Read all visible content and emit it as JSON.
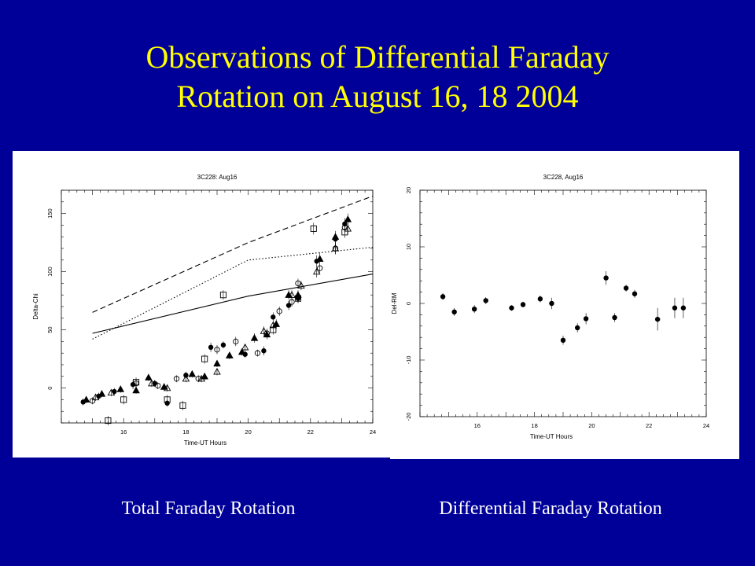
{
  "slide": {
    "title_line1": "Observations of Differential Faraday",
    "title_line2": "Rotation on August 16, 18 2004",
    "caption_left": "Total Faraday Rotation",
    "caption_right": "Differential Faraday Rotation",
    "colors": {
      "background": "#000099",
      "title": "#ffff00",
      "caption": "#ffffff",
      "panel": "#ffffff"
    }
  },
  "chart_data": [
    {
      "type": "scatter",
      "title": "3C228: Aug16",
      "xlabel": "Time-UT Hours",
      "ylabel": "Delta-Chi",
      "xlim": [
        14,
        24
      ],
      "ylim": [
        -30,
        170
      ],
      "xticks": [
        16,
        18,
        20,
        22,
        24
      ],
      "yticks": [
        0,
        50,
        100,
        150
      ],
      "grid": false,
      "legend": "none",
      "lines": [
        {
          "style": "dashed",
          "x": [
            15.0,
            20.0,
            24.0
          ],
          "y": [
            65,
            125,
            165
          ]
        },
        {
          "style": "dotted",
          "x": [
            15.0,
            20.0,
            24.0
          ],
          "y": [
            42,
            110,
            121
          ]
        },
        {
          "style": "solid",
          "x": [
            15.0,
            20.0,
            24.0
          ],
          "y": [
            47,
            79,
            98
          ]
        }
      ],
      "series": [
        {
          "marker": "filled-circle",
          "x": [
            14.7,
            15.2,
            15.7,
            16.3,
            17.0,
            17.4,
            18.0,
            18.8,
            19.2,
            19.9,
            20.5,
            20.8,
            21.3,
            21.6,
            22.2,
            22.8,
            23.1
          ],
          "y": [
            -12,
            -7,
            -3,
            3,
            4,
            -13,
            11,
            35,
            37,
            29,
            32,
            61,
            71,
            77,
            109,
            128,
            141
          ],
          "err": [
            3,
            3,
            3,
            4,
            3,
            3,
            3,
            4,
            3,
            3,
            4,
            4,
            4,
            4,
            5,
            5,
            5
          ]
        },
        {
          "marker": "filled-triangle",
          "x": [
            14.8,
            15.3,
            15.9,
            16.4,
            16.8,
            17.3,
            18.2,
            18.6,
            19.0,
            19.4,
            19.8,
            20.2,
            20.6,
            20.9,
            21.3,
            21.6,
            22.3,
            22.8,
            23.2
          ],
          "y": [
            -10,
            -5,
            -1,
            -2,
            9,
            1,
            12,
            10,
            21,
            28,
            31,
            43,
            46,
            55,
            80,
            80,
            111,
            130,
            145
          ],
          "err": [
            3,
            3,
            3,
            3,
            3,
            3,
            3,
            3,
            3,
            3,
            3,
            4,
            4,
            4,
            4,
            4,
            5,
            5,
            5
          ]
        },
        {
          "marker": "open-circle",
          "x": [
            15.0,
            16.4,
            17.1,
            17.7,
            18.4,
            19.0,
            19.6,
            20.3,
            20.6,
            21.0,
            21.4,
            21.6,
            22.3,
            22.8,
            23.1
          ],
          "y": [
            -11,
            4,
            2,
            8,
            8,
            33,
            40,
            30,
            47,
            66,
            74,
            90,
            103,
            120,
            138
          ],
          "err": [
            3,
            3,
            3,
            3,
            3,
            4,
            4,
            3,
            4,
            4,
            4,
            4,
            4,
            5,
            5
          ]
        },
        {
          "marker": "open-triangle",
          "x": [
            15.1,
            15.6,
            16.9,
            17.4,
            18.0,
            18.5,
            19.0,
            19.4,
            19.9,
            20.5,
            20.8,
            21.4,
            21.7,
            22.2,
            22.8,
            23.2
          ],
          "y": [
            -8,
            -4,
            4,
            0,
            8,
            8,
            14,
            28,
            35,
            49,
            54,
            80,
            88,
            100,
            120,
            137
          ],
          "err": [
            3,
            3,
            3,
            3,
            3,
            3,
            3,
            3,
            3,
            4,
            4,
            4,
            4,
            5,
            5,
            5
          ]
        },
        {
          "marker": "open-square",
          "x": [
            15.5,
            16.0,
            16.4,
            17.4,
            17.9,
            18.6,
            19.2,
            20.8,
            21.6,
            22.1,
            23.1
          ],
          "y": [
            -28,
            -10,
            5,
            -10,
            -15,
            25,
            80,
            50,
            77,
            137,
            134
          ],
          "err": [
            4,
            4,
            4,
            4,
            4,
            4,
            4,
            4,
            4,
            5,
            5
          ]
        }
      ]
    },
    {
      "type": "scatter",
      "title": "3C228, Aug16",
      "xlabel": "Time-UT Hours",
      "ylabel": "Del-RM",
      "xlim": [
        14,
        24
      ],
      "ylim": [
        -20,
        20
      ],
      "xticks": [
        16,
        18,
        20,
        22,
        24
      ],
      "yticks": [
        -20,
        -10,
        0,
        10,
        20
      ],
      "grid": false,
      "legend": "none",
      "series": [
        {
          "marker": "filled-circle",
          "x": [
            14.8,
            15.2,
            15.9,
            16.3,
            17.2,
            17.6,
            18.2,
            18.6,
            19.0,
            19.5,
            19.8,
            20.5,
            20.8,
            21.2,
            21.5,
            22.3,
            22.9,
            23.2
          ],
          "y": [
            1.2,
            -1.5,
            -1.0,
            0.5,
            -0.8,
            -0.2,
            0.8,
            0.0,
            -6.5,
            -4.3,
            -2.7,
            4.5,
            -2.5,
            2.7,
            1.7,
            -2.8,
            -0.8,
            -0.8
          ],
          "err": [
            0.6,
            0.7,
            0.7,
            0.6,
            0.5,
            0.5,
            0.6,
            1.0,
            0.8,
            0.8,
            1.0,
            1.2,
            0.8,
            0.6,
            0.7,
            2.0,
            1.8,
            1.8
          ]
        }
      ]
    }
  ]
}
